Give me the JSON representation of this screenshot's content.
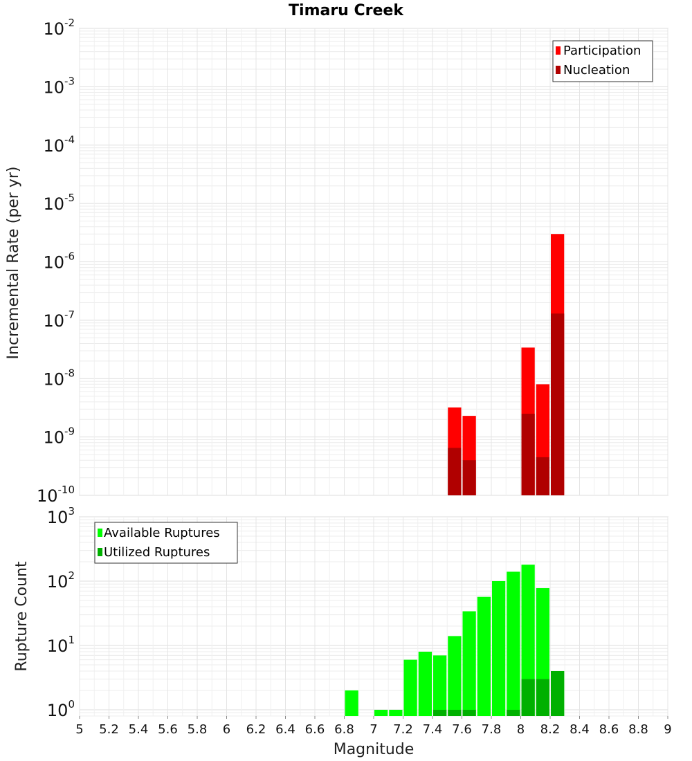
{
  "title": "Timaru Creek",
  "chart_data": [
    {
      "type": "bar",
      "ylabel": "Incremental Rate (per yr)",
      "yscale": "log",
      "ylim": [
        1e-10,
        0.01
      ],
      "xlim": [
        5,
        9
      ],
      "grid": true,
      "legend_position": "top-right",
      "series": [
        {
          "name": "Participation",
          "color": "#ff0000",
          "x": [
            7.55,
            7.65,
            8.05,
            8.15,
            8.25
          ],
          "values": [
            3.2e-09,
            2.3e-09,
            3.4e-08,
            8e-09,
            3e-06
          ]
        },
        {
          "name": "Nucleation",
          "color": "#b00000",
          "x": [
            7.55,
            7.65,
            8.05,
            8.15,
            8.25
          ],
          "values": [
            6.5e-10,
            4e-10,
            2.5e-09,
            4.5e-10,
            1.3e-07
          ]
        }
      ]
    },
    {
      "type": "bar",
      "ylabel": "Rupture Count",
      "xlabel": "Magnitude",
      "yscale": "log",
      "ylim": [
        0.8,
        1000
      ],
      "xlim": [
        5,
        9
      ],
      "grid": true,
      "legend_position": "top-left",
      "series": [
        {
          "name": "Available Ruptures",
          "color": "#00ff00",
          "x": [
            6.85,
            7.05,
            7.15,
            7.25,
            7.35,
            7.45,
            7.55,
            7.65,
            7.75,
            7.85,
            7.95,
            8.05,
            8.15,
            8.25
          ],
          "values": [
            2,
            1,
            1,
            6,
            8,
            7,
            14,
            34,
            57,
            100,
            140,
            180,
            78,
            4
          ]
        },
        {
          "name": "Utilized Ruptures",
          "color": "#00b000",
          "x": [
            7.45,
            7.55,
            7.65,
            7.95,
            8.05,
            8.15,
            8.25
          ],
          "values": [
            1,
            1,
            1,
            1,
            3,
            3,
            4
          ]
        }
      ]
    }
  ],
  "x_ticks": [
    "5",
    "5.2",
    "5.4",
    "5.6",
    "5.8",
    "6",
    "6.2",
    "6.4",
    "6.6",
    "6.8",
    "7",
    "7.2",
    "7.4",
    "7.6",
    "7.8",
    "8",
    "8.2",
    "8.4",
    "8.6",
    "8.8",
    "9"
  ],
  "top_y_ticks": [
    {
      "base": "10",
      "exp": "-10"
    },
    {
      "base": "10",
      "exp": "-9"
    },
    {
      "base": "10",
      "exp": "-8"
    },
    {
      "base": "10",
      "exp": "-7"
    },
    {
      "base": "10",
      "exp": "-6"
    },
    {
      "base": "10",
      "exp": "-5"
    },
    {
      "base": "10",
      "exp": "-4"
    },
    {
      "base": "10",
      "exp": "-3"
    },
    {
      "base": "10",
      "exp": "-2"
    }
  ],
  "bottom_y_ticks": [
    {
      "base": "10",
      "exp": "0"
    },
    {
      "base": "10",
      "exp": "1"
    },
    {
      "base": "10",
      "exp": "2"
    },
    {
      "base": "10",
      "exp": "3"
    }
  ]
}
